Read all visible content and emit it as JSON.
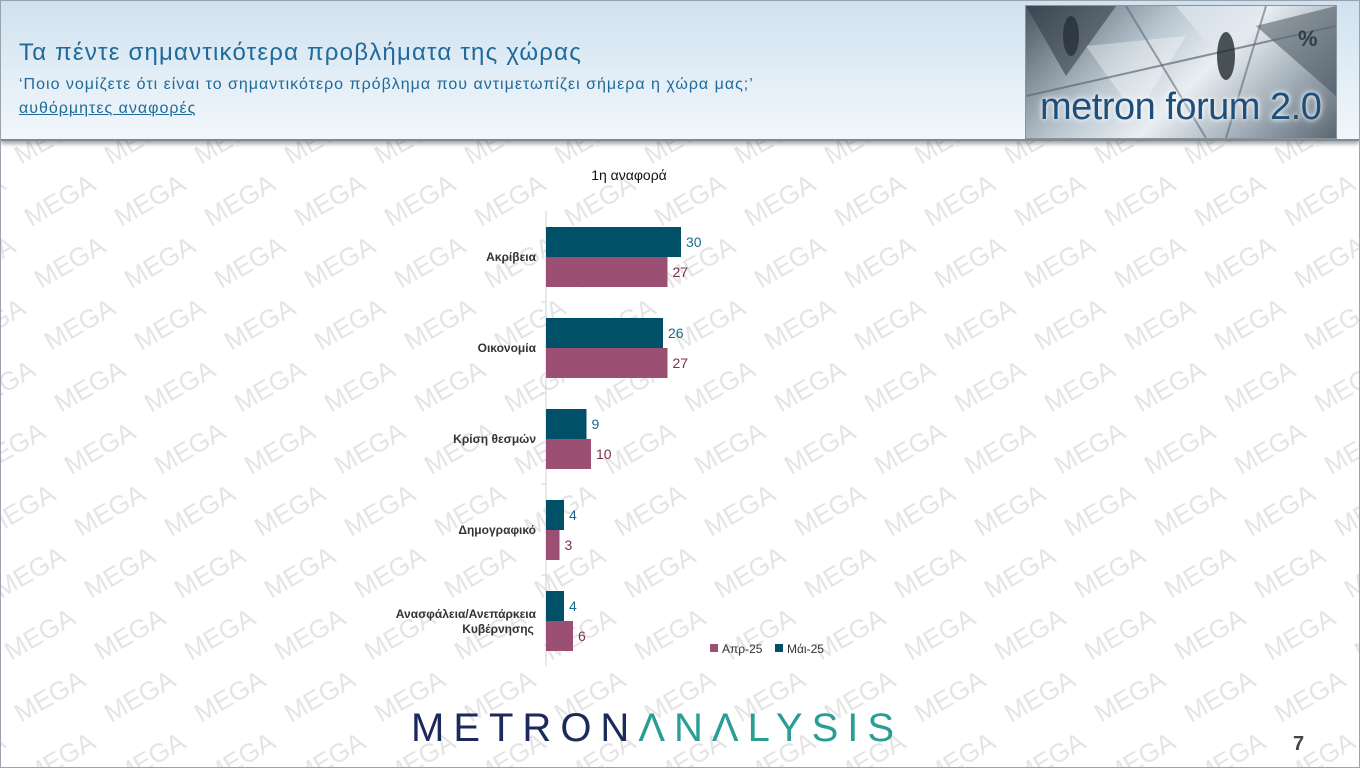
{
  "header": {
    "title": "Τα πέντε σημαντικότερα προβλήματα της χώρας",
    "subtitle": "‘Ποιο νομίζετε ότι είναι το σημαντικότερο πρόβλημα που αντιμετωπίζει σήμερα η χώρα μας;’",
    "subtitle2": "αυθόρμητες αναφορές",
    "logo_text": "metron forum 2.0",
    "percent_sign": "%"
  },
  "watermark_text": "MEGA",
  "footer": {
    "brand_part1": "METRON",
    "brand_part2": "ΛNΛLYSIS",
    "page_number": "7"
  },
  "colors": {
    "series_mai": "#005068",
    "series_apr": "#9b4f73",
    "title": "#1f6a9a"
  },
  "chart_data": {
    "type": "bar",
    "orientation": "horizontal",
    "title": "1η αναφορά",
    "categories": [
      "Ακρίβεια",
      "Οικονομία",
      "Κρίση θεσμών",
      "Δημογραφικό",
      "Ανασφάλεια/Ανεπάρκεια Κυβέρνησης"
    ],
    "series": [
      {
        "name": "Μάι-25",
        "color": "#005068",
        "values": [
          30,
          26,
          9,
          4,
          4
        ]
      },
      {
        "name": "Απρ-25",
        "color": "#9b4f73",
        "values": [
          27,
          27,
          10,
          3,
          6
        ]
      }
    ],
    "legend": [
      "Απρ-25",
      "Μάι-25"
    ],
    "legend_position": "bottom-right",
    "xlim": [
      0,
      30
    ],
    "grid": false
  }
}
